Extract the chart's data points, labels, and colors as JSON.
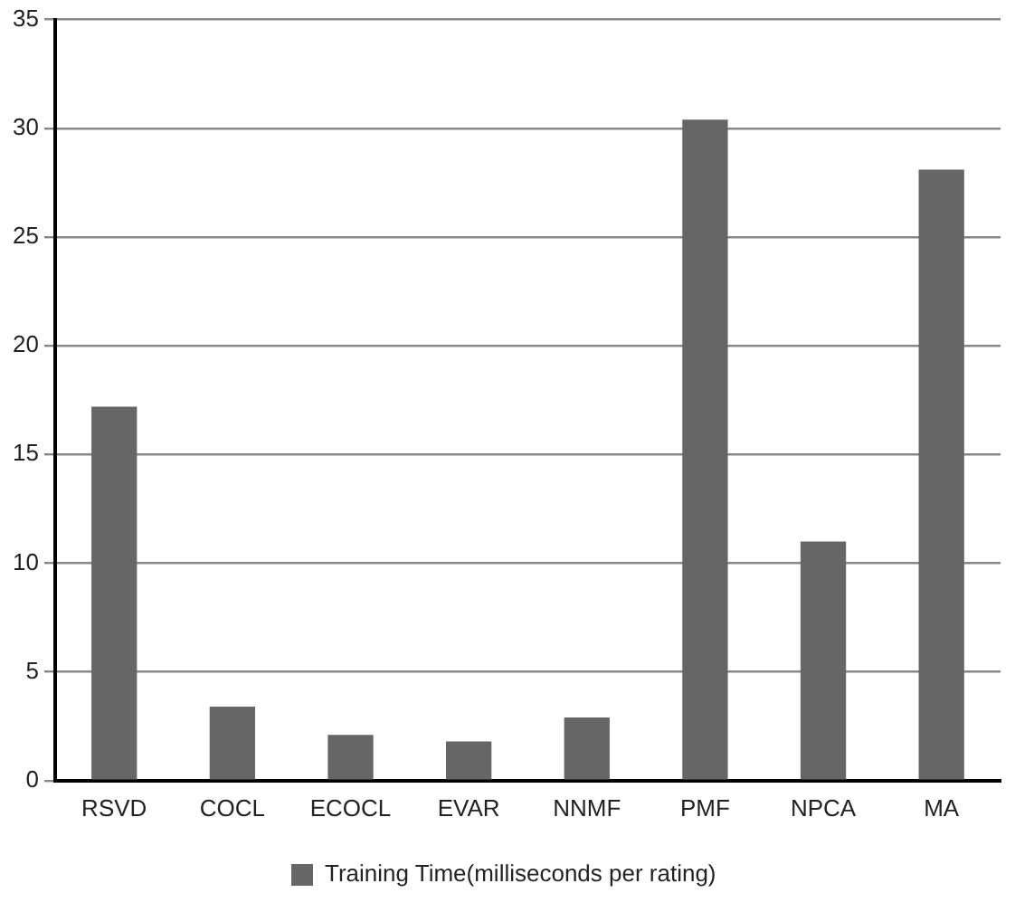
{
  "chart_data": {
    "type": "bar",
    "categories": [
      "RSVD",
      "COCL",
      "ECOCL",
      "EVAR",
      "NNMF",
      "PMF",
      "NPCA",
      "MA"
    ],
    "series": [
      {
        "name": "Training Time(milliseconds per rating)",
        "color": "#666666",
        "values": [
          17.2,
          3.4,
          2.1,
          1.8,
          2.9,
          30.4,
          11.0,
          28.1
        ]
      }
    ],
    "ylim": [
      0,
      35
    ],
    "yticks": [
      0,
      5,
      10,
      15,
      20,
      25,
      30,
      35
    ],
    "grid": "y",
    "legend": "bottom"
  }
}
